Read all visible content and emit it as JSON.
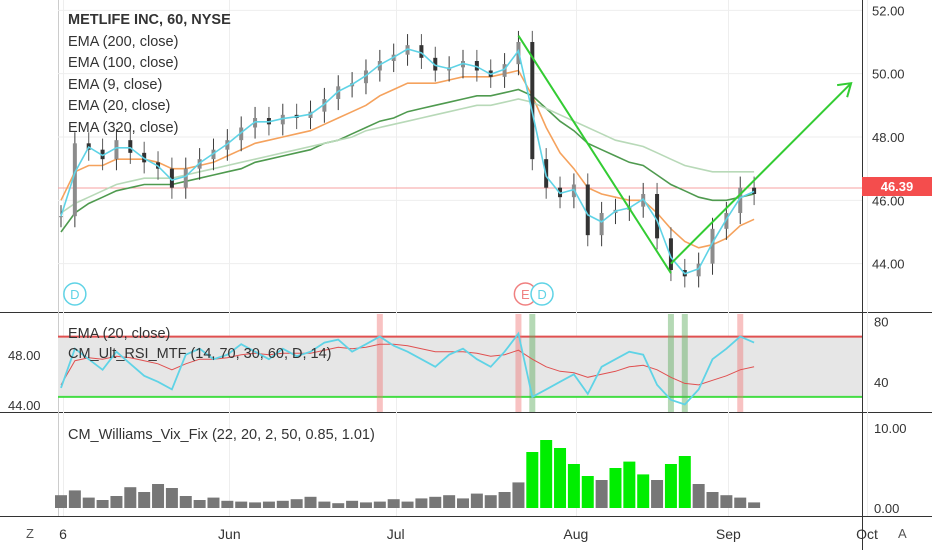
{
  "legend": {
    "title": "METLIFE INC, 60, NYSE",
    "lines": [
      "EMA (200, close)",
      "EMA (100, close)",
      "EMA (9, close)",
      "EMA (20, close)",
      "EMA (320, close)"
    ]
  },
  "legend2": [
    "EMA (20, close)",
    "CM_Ult_RSI_MTF (14, 70, 30, 60, D, 14)"
  ],
  "legend3": "CM_Williams_Vix_Fix (22, 20, 2, 50, 0.85, 1.01)",
  "last_price": "46.39",
  "corner_left": "Z",
  "corner_right": "A",
  "colors": {
    "ema9": "#5fd3e6",
    "ema20": "#f5a25d",
    "ema100": "#4f9a4f",
    "ema200": "#b8d9b8",
    "trend": "#33cc33",
    "vix_high": "#00ee00",
    "vix_low": "#777777"
  },
  "chart_data": [
    {
      "type": "line",
      "pane": "price",
      "title": "METLIFE INC, 60, NYSE",
      "x_labels": [
        "6",
        "Jun",
        "Jul",
        "Aug",
        "Sep",
        "Oct"
      ],
      "y_ticks": [
        "52.00",
        "50.00",
        "48.00",
        "46.00",
        "44.00"
      ],
      "ylim": [
        42.6,
        52.2
      ],
      "last_price": 46.39,
      "markers": [
        "D",
        "E",
        "D"
      ],
      "series": [
        {
          "name": "price",
          "values": [
            45.5,
            47.8,
            47.6,
            47.3,
            47.9,
            47.5,
            47.2,
            47.0,
            46.4,
            47.0,
            47.3,
            47.6,
            47.9,
            48.3,
            48.6,
            48.4,
            48.7,
            48.6,
            48.8,
            49.2,
            49.6,
            49.7,
            50.1,
            50.4,
            50.6,
            50.9,
            50.5,
            50.1,
            50.2,
            50.4,
            50.1,
            49.9,
            50.3,
            51.0,
            47.3,
            46.4,
            46.1,
            46.5,
            44.9,
            45.6,
            45.7,
            45.8,
            46.2,
            44.8,
            43.8,
            43.6,
            44.0,
            45.1,
            45.6,
            46.4,
            46.2
          ]
        },
        {
          "name": "EMA (20, close)",
          "values": [
            46.0,
            46.9,
            47.1,
            47.1,
            47.3,
            47.3,
            47.3,
            47.2,
            47.0,
            47.0,
            47.1,
            47.2,
            47.4,
            47.6,
            47.8,
            47.9,
            48.0,
            48.1,
            48.2,
            48.4,
            48.6,
            48.8,
            49.0,
            49.3,
            49.5,
            49.7,
            49.7,
            49.7,
            49.8,
            49.9,
            49.9,
            49.9,
            50.0,
            50.1,
            49.3,
            48.3,
            47.5,
            47.0,
            46.4,
            46.2,
            46.1,
            46.0,
            46.0,
            45.6,
            45.1,
            44.7,
            44.5,
            44.6,
            44.8,
            45.2,
            45.4
          ]
        },
        {
          "name": "EMA (100, close)",
          "values": [
            45.0,
            45.6,
            45.9,
            46.1,
            46.3,
            46.4,
            46.5,
            46.5,
            46.5,
            46.6,
            46.7,
            46.8,
            46.9,
            47.0,
            47.2,
            47.3,
            47.4,
            47.5,
            47.6,
            47.8,
            47.9,
            48.1,
            48.3,
            48.5,
            48.6,
            48.8,
            48.9,
            49.0,
            49.1,
            49.2,
            49.3,
            49.3,
            49.4,
            49.5,
            49.3,
            48.9,
            48.5,
            48.2,
            47.8,
            47.6,
            47.4,
            47.2,
            47.1,
            46.8,
            46.5,
            46.3,
            46.1,
            46.0,
            46.0,
            46.1,
            46.2
          ]
        },
        {
          "name": "EMA (200, close)",
          "values": [
            45.6,
            45.9,
            46.1,
            46.3,
            46.5,
            46.6,
            46.7,
            46.7,
            46.7,
            46.8,
            46.9,
            47.0,
            47.1,
            47.2,
            47.3,
            47.4,
            47.5,
            47.6,
            47.7,
            47.8,
            47.9,
            48.0,
            48.2,
            48.3,
            48.4,
            48.5,
            48.6,
            48.7,
            48.8,
            48.9,
            49.0,
            49.0,
            49.1,
            49.2,
            49.1,
            48.9,
            48.7,
            48.5,
            48.3,
            48.1,
            47.9,
            47.8,
            47.7,
            47.5,
            47.3,
            47.1,
            47.0,
            46.9,
            46.9,
            46.9,
            46.9
          ]
        }
      ],
      "trendlines": [
        {
          "from": [
            33,
            51.2
          ],
          "to": [
            44,
            43.7
          ]
        },
        {
          "from": [
            44,
            44.0
          ],
          "to": [
            57,
            49.7
          ]
        }
      ]
    },
    {
      "type": "line",
      "pane": "rsi",
      "title": "",
      "y_ticks": [
        "80",
        "40"
      ],
      "left_ticks": [
        "48.00",
        "44.00"
      ],
      "ylim": [
        20,
        85
      ],
      "levels": [
        70,
        30
      ],
      "series": [
        {
          "name": "CM_Ult_RSI_MTF (14, 70, 30, 60, D, 14)",
          "values": [
            36,
            62,
            55,
            48,
            60,
            52,
            44,
            40,
            35,
            58,
            62,
            55,
            58,
            65,
            60,
            55,
            62,
            57,
            60,
            66,
            68,
            60,
            65,
            70,
            64,
            60,
            55,
            50,
            58,
            62,
            55,
            50,
            60,
            72,
            30,
            35,
            40,
            45,
            32,
            50,
            55,
            60,
            58,
            38,
            28,
            25,
            35,
            55,
            62,
            70,
            66
          ]
        },
        {
          "name": "EMA (20, close)",
          "values": [
            38,
            54,
            56,
            55,
            57,
            56,
            54,
            52,
            48,
            52,
            55,
            55,
            56,
            58,
            59,
            58,
            59,
            59,
            59,
            61,
            63,
            62,
            63,
            65,
            65,
            64,
            62,
            60,
            60,
            60,
            59,
            57,
            58,
            61,
            55,
            50,
            47,
            46,
            43,
            45,
            47,
            50,
            51,
            48,
            43,
            39,
            38,
            41,
            44,
            48,
            50
          ]
        }
      ]
    },
    {
      "type": "bar",
      "pane": "vix",
      "title": "",
      "y_ticks": [
        "10.00",
        "0.00"
      ],
      "ylim": [
        0,
        11
      ],
      "series": [
        {
          "name": "CM_Williams_Vix_Fix (22, 20, 2, 50, 0.85, 1.01)",
          "values": [
            1.6,
            2.2,
            1.3,
            1.0,
            1.5,
            2.6,
            2.0,
            3.0,
            2.5,
            1.5,
            1.0,
            1.3,
            0.9,
            0.8,
            0.7,
            0.8,
            0.9,
            1.1,
            1.4,
            0.8,
            0.6,
            0.9,
            0.7,
            0.8,
            1.1,
            0.8,
            1.2,
            1.4,
            1.6,
            1.2,
            1.8,
            1.6,
            2.0,
            3.2,
            7.0,
            8.5,
            7.5,
            5.5,
            4.0,
            3.5,
            5.0,
            5.8,
            4.2,
            3.5,
            5.5,
            6.5,
            3.0,
            2.0,
            1.6,
            1.3,
            0.7
          ]
        }
      ],
      "highlight_threshold": 4.0
    }
  ]
}
